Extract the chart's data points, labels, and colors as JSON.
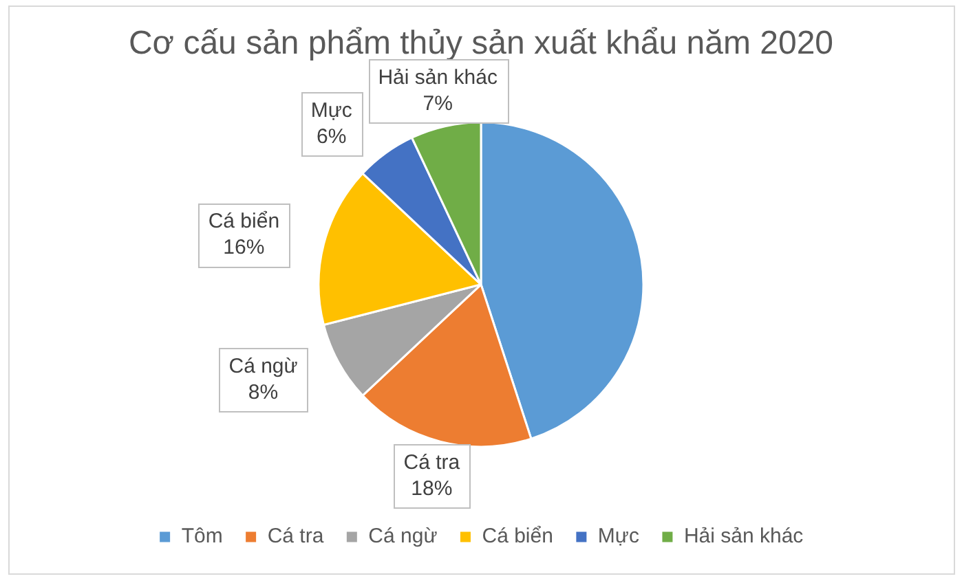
{
  "chart_data": {
    "type": "pie",
    "title": "Cơ cấu sản phẩm thủy sản xuất khẩu năm 2020",
    "categories": [
      "Tôm",
      "Cá tra",
      "Cá ngừ",
      "Cá biển",
      "Mực",
      "Hải sản khác"
    ],
    "values": [
      45,
      18,
      8,
      16,
      6,
      7
    ],
    "colors": [
      "#5b9bd5",
      "#ed7d31",
      "#a5a5a5",
      "#ffc000",
      "#4472c4",
      "#70ad47"
    ],
    "value_labels": [
      null,
      "18%",
      "8%",
      "16%",
      "6%",
      "7%"
    ],
    "legend": "bottom"
  }
}
